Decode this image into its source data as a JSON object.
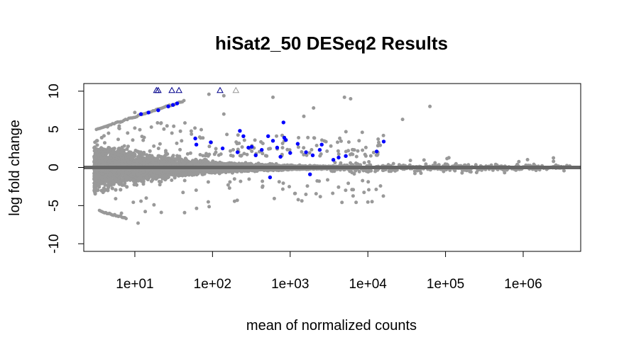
{
  "chart_data": {
    "type": "scatter",
    "title": "hiSat2_50 DESeq2 Results",
    "xlabel": "mean of normalized counts",
    "ylabel": "log fold change",
    "x_scale": "log10",
    "xlim": [
      2.2,
      5500000
    ],
    "ylim": [
      -11,
      11
    ],
    "x_ticks": [
      {
        "value": 10,
        "label": "1e+01"
      },
      {
        "value": 100,
        "label": "1e+02"
      },
      {
        "value": 1000,
        "label": "1e+03"
      },
      {
        "value": 10000,
        "label": "1e+04"
      },
      {
        "value": 100000,
        "label": "1e+05"
      },
      {
        "value": 1000000,
        "label": "1e+06"
      }
    ],
    "y_ticks": [
      {
        "value": 10,
        "label": "10"
      },
      {
        "value": 5,
        "label": "5"
      },
      {
        "value": 0,
        "label": "0"
      },
      {
        "value": -5,
        "label": "-5"
      },
      {
        "value": -10,
        "label": "-10"
      }
    ],
    "baseline": 0,
    "colors": {
      "not_significant": "#999999",
      "significant": "#0000ff",
      "baseline": "#666666",
      "out_of_range_gray": "#999999",
      "out_of_range_blue": "#00008b"
    },
    "series": [
      {
        "color_key": "significant",
        "marker": "circle",
        "points": [
          [
            12,
            7.0
          ],
          [
            15,
            7.2
          ],
          [
            20,
            7.5
          ],
          [
            27,
            8.0
          ],
          [
            31,
            8.2
          ],
          [
            35,
            8.4
          ],
          [
            60,
            3.8
          ],
          [
            62,
            3.0
          ],
          [
            95,
            3.3
          ],
          [
            135,
            2.5
          ],
          [
            210,
            2.0
          ],
          [
            225,
            4.8
          ],
          [
            250,
            4.1
          ],
          [
            290,
            2.6
          ],
          [
            320,
            2.7
          ],
          [
            360,
            1.6
          ],
          [
            430,
            2.3
          ],
          [
            520,
            4.1
          ],
          [
            600,
            3.5
          ],
          [
            680,
            2.6
          ],
          [
            750,
            1.4
          ],
          [
            820,
            5.9
          ],
          [
            840,
            3.9
          ],
          [
            880,
            3.6
          ],
          [
            1000,
            1.9
          ],
          [
            1250,
            3.1
          ],
          [
            1600,
            2.0
          ],
          [
            1800,
            -0.9
          ],
          [
            1950,
            1.6
          ],
          [
            2400,
            2.3
          ],
          [
            2550,
            3.0
          ],
          [
            3600,
            1.0
          ],
          [
            4200,
            1.3
          ],
          [
            13000,
            2.1
          ],
          [
            16000,
            3.4
          ],
          [
            550,
            -1.3
          ],
          [
            5200,
            1.5
          ]
        ]
      },
      {
        "color_key": "out_of_range_gray",
        "marker": "triangle",
        "points": [
          [
            200,
            10
          ]
        ]
      },
      {
        "color_key": "out_of_range_blue",
        "marker": "triangle",
        "points": [
          [
            19,
            10
          ],
          [
            20,
            10
          ],
          [
            30,
            10
          ],
          [
            37,
            10
          ],
          [
            125,
            10
          ]
        ]
      }
    ],
    "background_cloud": "dense gray point cloud spanning roughly 3 to 4e6 counts, centred on 0, widening toward low counts"
  }
}
